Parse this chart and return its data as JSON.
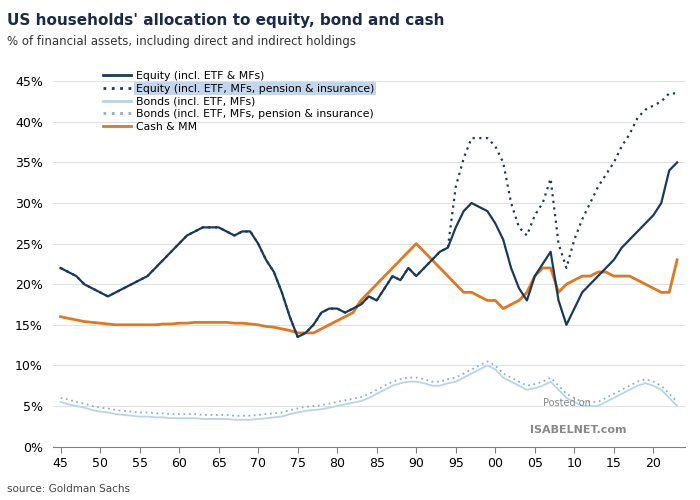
{
  "title": "US households' allocation to equity, bond and cash",
  "subtitle": "% of financial assets, including direct and indirect holdings",
  "source": "source: Goldman Sachs",
  "watermark_line1": "Posted on",
  "watermark_line2": "ISABELNET.com",
  "colors": {
    "equity_solid": "#1a3a5c",
    "equity_dotted": "#1a3a5c",
    "bonds_solid": "#b8d4e8",
    "bonds_dotted": "#8ab0cc",
    "cash": "#e07820"
  },
  "legend_entries": [
    "Equity (incl. ETF & MFs)",
    "Equity (incl. ETF, MFs, pension & insurance)",
    "Bonds (incl. ETF, MFs)",
    "Bonds (incl. ETF, MFs, pension & insurance)",
    "Cash & MM"
  ],
  "xtick_labels": [
    "45",
    "50",
    "55",
    "60",
    "65",
    "70",
    "75",
    "80",
    "85",
    "90",
    "95",
    "00",
    "05",
    "10",
    "15",
    "20"
  ],
  "xtick_vals": [
    45,
    50,
    55,
    60,
    65,
    70,
    75,
    80,
    85,
    90,
    95,
    100,
    105,
    110,
    115,
    120
  ],
  "ytick_vals": [
    0,
    5,
    10,
    15,
    20,
    25,
    30,
    35,
    40,
    45
  ],
  "ytick_labels": [
    "0%",
    "5%",
    "10%",
    "15%",
    "20%",
    "25%",
    "30%",
    "35%",
    "40%",
    "45%"
  ],
  "xlim": [
    44,
    124
  ],
  "ylim": [
    0,
    47
  ],
  "equity_solid": [
    22.0,
    21.5,
    21.0,
    20.0,
    19.5,
    19.0,
    18.5,
    19.0,
    19.5,
    20.0,
    20.5,
    21.0,
    22.0,
    23.0,
    24.0,
    25.0,
    26.0,
    26.5,
    27.0,
    27.0,
    27.0,
    26.5,
    26.0,
    26.5,
    26.5,
    25.0,
    23.0,
    21.5,
    19.0,
    16.0,
    13.5,
    14.0,
    15.0,
    16.5,
    17.0,
    17.0,
    16.5,
    17.0,
    17.5,
    18.5,
    18.0,
    19.5,
    21.0,
    20.5,
    22.0,
    21.0,
    22.0,
    23.0,
    24.0,
    24.5,
    27.0,
    29.0,
    30.0,
    29.5,
    29.0,
    27.5,
    25.5,
    22.0,
    19.5,
    18.0,
    21.0,
    22.5,
    24.0,
    18.0,
    15.0,
    17.0,
    19.0,
    20.0,
    21.0,
    22.0,
    23.0,
    24.5,
    25.5,
    26.5,
    27.5,
    28.5,
    30.0,
    34.0,
    35.0
  ],
  "equity_dotted": [
    22.0,
    21.5,
    21.0,
    20.0,
    19.5,
    19.0,
    18.5,
    19.0,
    19.5,
    20.0,
    20.5,
    21.0,
    22.0,
    23.0,
    24.0,
    25.0,
    26.0,
    26.5,
    27.0,
    27.0,
    27.0,
    26.5,
    26.0,
    26.5,
    26.5,
    25.0,
    23.0,
    21.5,
    19.0,
    16.0,
    13.5,
    14.0,
    15.0,
    16.5,
    17.0,
    17.0,
    16.5,
    17.0,
    17.5,
    18.5,
    18.0,
    19.5,
    21.0,
    20.5,
    22.0,
    21.0,
    22.0,
    23.0,
    24.0,
    24.5,
    32.0,
    35.5,
    38.0,
    38.0,
    38.0,
    37.0,
    35.0,
    30.0,
    27.0,
    26.0,
    28.5,
    30.0,
    33.0,
    25.0,
    22.0,
    25.5,
    28.0,
    30.0,
    32.0,
    33.5,
    35.0,
    37.0,
    38.5,
    40.5,
    41.5,
    42.0,
    42.5,
    43.5,
    43.5
  ],
  "bonds_solid": [
    5.5,
    5.2,
    5.0,
    4.8,
    4.5,
    4.3,
    4.2,
    4.0,
    3.9,
    3.8,
    3.7,
    3.7,
    3.6,
    3.6,
    3.5,
    3.5,
    3.5,
    3.5,
    3.4,
    3.4,
    3.4,
    3.4,
    3.3,
    3.3,
    3.3,
    3.4,
    3.5,
    3.6,
    3.7,
    4.0,
    4.2,
    4.4,
    4.5,
    4.6,
    4.8,
    5.0,
    5.2,
    5.4,
    5.6,
    6.0,
    6.5,
    7.0,
    7.5,
    7.8,
    8.0,
    8.0,
    7.8,
    7.5,
    7.5,
    7.8,
    8.0,
    8.5,
    9.0,
    9.5,
    10.0,
    9.5,
    8.5,
    8.0,
    7.5,
    7.0,
    7.2,
    7.5,
    8.0,
    7.0,
    6.0,
    5.5,
    5.0,
    5.0,
    5.0,
    5.5,
    6.0,
    6.5,
    7.0,
    7.5,
    7.8,
    7.5,
    7.0,
    6.0,
    5.0
  ],
  "bonds_dotted": [
    6.0,
    5.8,
    5.5,
    5.3,
    5.0,
    4.8,
    4.7,
    4.5,
    4.4,
    4.3,
    4.2,
    4.2,
    4.1,
    4.1,
    4.0,
    4.0,
    4.0,
    4.0,
    3.9,
    3.9,
    3.9,
    3.9,
    3.8,
    3.8,
    3.8,
    3.9,
    4.0,
    4.1,
    4.2,
    4.5,
    4.7,
    4.9,
    5.0,
    5.1,
    5.3,
    5.5,
    5.7,
    5.9,
    6.1,
    6.5,
    7.0,
    7.5,
    8.0,
    8.3,
    8.5,
    8.5,
    8.3,
    8.0,
    8.0,
    8.3,
    8.5,
    9.0,
    9.5,
    10.0,
    10.5,
    10.0,
    9.0,
    8.5,
    8.0,
    7.5,
    7.7,
    8.0,
    8.5,
    7.5,
    6.5,
    6.0,
    5.5,
    5.5,
    5.5,
    6.0,
    6.5,
    7.0,
    7.5,
    8.0,
    8.3,
    8.0,
    7.5,
    6.5,
    5.5
  ],
  "cash": [
    16.0,
    15.8,
    15.6,
    15.4,
    15.3,
    15.2,
    15.1,
    15.0,
    15.0,
    15.0,
    15.0,
    15.0,
    15.0,
    15.1,
    15.1,
    15.2,
    15.2,
    15.3,
    15.3,
    15.3,
    15.3,
    15.3,
    15.2,
    15.2,
    15.1,
    15.0,
    14.8,
    14.7,
    14.5,
    14.3,
    14.0,
    14.0,
    14.0,
    14.5,
    15.0,
    15.5,
    16.0,
    16.5,
    18.0,
    19.0,
    20.0,
    21.0,
    22.0,
    23.0,
    24.0,
    25.0,
    24.0,
    23.0,
    22.0,
    21.0,
    20.0,
    19.0,
    19.0,
    18.5,
    18.0,
    18.0,
    17.0,
    17.5,
    18.0,
    19.0,
    21.0,
    22.0,
    22.0,
    19.0,
    20.0,
    20.5,
    21.0,
    21.0,
    21.5,
    21.5,
    21.0,
    21.0,
    21.0,
    20.5,
    20.0,
    19.5,
    19.0,
    19.0,
    23.0
  ],
  "x_years": [
    45,
    46,
    47,
    48,
    49,
    50,
    51,
    52,
    53,
    54,
    55,
    56,
    57,
    58,
    59,
    60,
    61,
    62,
    63,
    64,
    65,
    66,
    67,
    68,
    69,
    70,
    71,
    72,
    73,
    74,
    75,
    76,
    77,
    78,
    79,
    80,
    81,
    82,
    83,
    84,
    85,
    86,
    87,
    88,
    89,
    90,
    91,
    92,
    93,
    94,
    95,
    96,
    97,
    98,
    99,
    100,
    101,
    102,
    103,
    104,
    105,
    106,
    107,
    108,
    109,
    110,
    111,
    112,
    113,
    114,
    115,
    116,
    117,
    118,
    119,
    120,
    121,
    122,
    123
  ]
}
